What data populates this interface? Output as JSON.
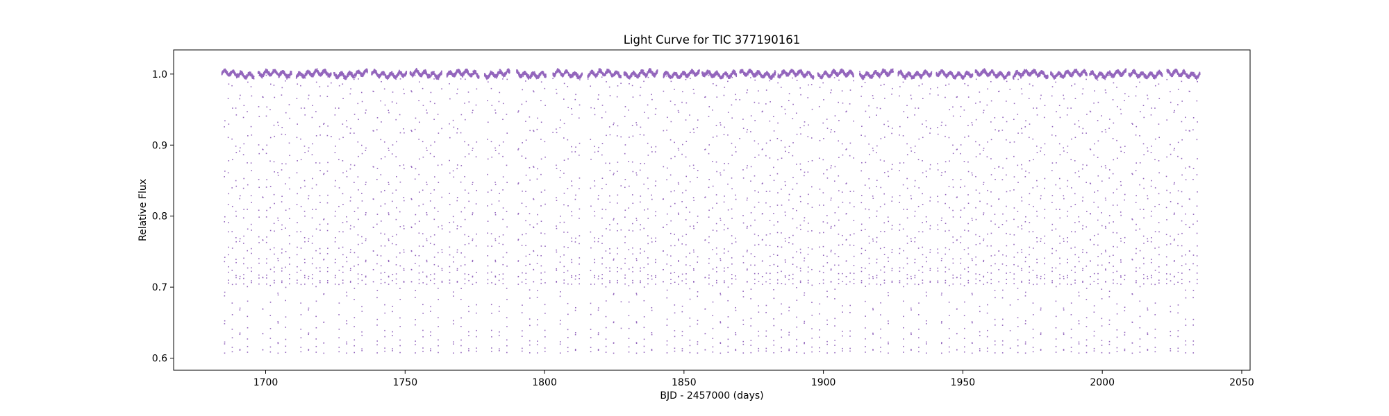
{
  "chart_data": {
    "type": "scatter",
    "title": "Light Curve for TIC 377190161",
    "xlabel": "BJD - 2457000 (days)",
    "ylabel": "Relative Flux",
    "xlim": [
      1667,
      2053
    ],
    "ylim": [
      0.583,
      1.034
    ],
    "xticks": [
      1700,
      1750,
      1800,
      1850,
      1900,
      1950,
      2000,
      2050
    ],
    "yticks": [
      0.6,
      0.7,
      0.8,
      0.9,
      1.0
    ],
    "grid": false,
    "legend": "none",
    "marker_color": "#9467bd",
    "series": [
      {
        "segments": [
          [
            1684.3,
            1695.8
          ],
          [
            1697.3,
            1709.3
          ],
          [
            1711.0,
            1723.5
          ],
          [
            1724.5,
            1736.5
          ],
          [
            1738.0,
            1750.5
          ],
          [
            1751.8,
            1763.3
          ],
          [
            1765.0,
            1776.5
          ],
          [
            1778.5,
            1787.5
          ],
          [
            1790.0,
            1800.5
          ],
          [
            1803.0,
            1813.5
          ],
          [
            1815.5,
            1827.5
          ],
          [
            1828.5,
            1840.5
          ],
          [
            1842.5,
            1855.5
          ],
          [
            1856.5,
            1868.8
          ],
          [
            1870.0,
            1882.8
          ],
          [
            1883.5,
            1896.5
          ],
          [
            1898.0,
            1911.0
          ],
          [
            1913.0,
            1925.0
          ],
          [
            1926.8,
            1938.8
          ],
          [
            1940.5,
            1953.5
          ],
          [
            1954.5,
            1967.0
          ],
          [
            1968.0,
            1980.5
          ],
          [
            1981.5,
            1994.5
          ],
          [
            1995.5,
            2008.5
          ],
          [
            2009.5,
            2021.5
          ],
          [
            2023.0,
            2035.0
          ]
        ],
        "baseline": 1.0,
        "period": 2.735,
        "epoch": 1685.3,
        "primary_min": 0.607,
        "secondary_min": 0.704,
        "eclipse_half_width": 0.11
      }
    ]
  }
}
